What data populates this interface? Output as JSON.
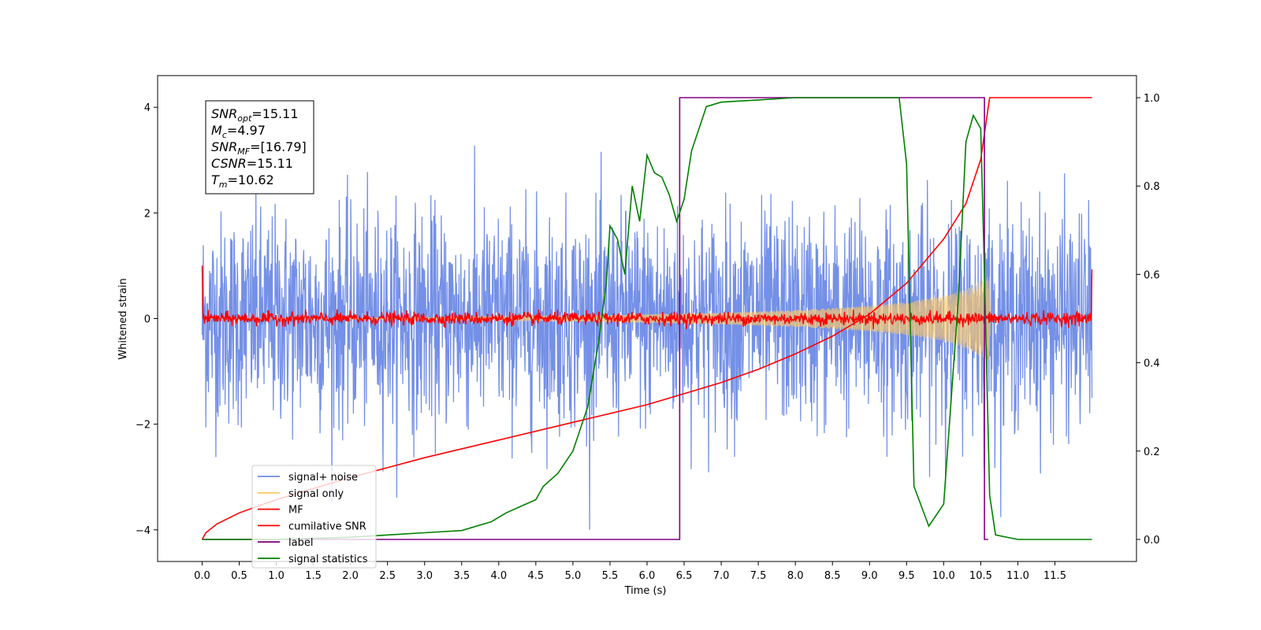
{
  "chart_data": {
    "type": "line",
    "xlabel": "Time (s)",
    "ylabel": "Whitened strain",
    "xlim": [
      -0.6,
      12.6
    ],
    "ylim": [
      -4.6,
      4.6
    ],
    "y2lim": [
      -0.05,
      1.05
    ],
    "x_ticks": [
      0.0,
      0.5,
      1.0,
      1.5,
      2.0,
      2.5,
      3.0,
      3.5,
      4.0,
      4.5,
      5.0,
      5.5,
      6.0,
      6.5,
      7.0,
      7.5,
      8.0,
      8.5,
      9.0,
      9.5,
      10.0,
      10.5,
      11.0,
      11.5
    ],
    "x_tick_labels": [
      "0.0",
      "0.5",
      "1.0",
      "1.5",
      "2.0",
      "2.5",
      "3.0",
      "3.5",
      "4.0",
      "4.5",
      "5.0",
      "5.5",
      "6.0",
      "6.5",
      "7.0",
      "7.5",
      "8.0",
      "8.5",
      "9.0",
      "9.5",
      "10.0",
      "10.5",
      "11.0",
      "11.5"
    ],
    "y_ticks": [
      -4,
      -2,
      0,
      2,
      4
    ],
    "y_tick_labels": [
      "−4",
      "−2",
      "0",
      "2",
      "4"
    ],
    "y2_ticks": [
      0.0,
      0.2,
      0.4,
      0.6,
      0.8,
      1.0
    ],
    "y2_tick_labels": [
      "0.0",
      "0.2",
      "0.4",
      "0.6",
      "0.8",
      "1.0"
    ],
    "legend_position": "lower-left",
    "legend": [
      {
        "label": "signal+ noise",
        "color": "#6d8ae6"
      },
      {
        "label": "signal only",
        "color": "#ffc966"
      },
      {
        "label": "MF",
        "color": "#ff0000"
      },
      {
        "label": "cumilative SNR",
        "color": "#ff0000"
      },
      {
        "label": "label",
        "color": "#800080"
      },
      {
        "label": "signal statistics",
        "color": "#008000"
      }
    ],
    "annotation": {
      "lines": [
        {
          "sym": "SNR",
          "sub": "opt",
          "value": "=15.11"
        },
        {
          "sym": "M",
          "sub": "c",
          "value": "=4.97"
        },
        {
          "sym": "SNR",
          "sub": "MF",
          "value": "=[16.79]"
        },
        {
          "sym": "CSNR",
          "sub": "",
          "value": "=15.11"
        },
        {
          "sym": "T",
          "sub": "m",
          "value": "=10.62"
        }
      ]
    },
    "series": [
      {
        "name": "signal+ noise",
        "axis": "left",
        "color": "#6d8ae6",
        "x_range": [
          0.0,
          12.0
        ],
        "spread": 1.0,
        "max_abs": 4.0
      },
      {
        "name": "signal only",
        "axis": "left",
        "color": "#ffc966",
        "envelope_x": [
          0.0,
          3.0,
          5.0,
          6.0,
          7.0,
          8.0,
          9.0,
          9.5,
          10.0,
          10.3,
          10.5,
          10.62,
          10.63
        ],
        "envelope_y": [
          0.0,
          0.02,
          0.05,
          0.08,
          0.11,
          0.16,
          0.24,
          0.31,
          0.43,
          0.56,
          0.72,
          0.8,
          0.0
        ]
      },
      {
        "name": "MF",
        "axis": "left",
        "color": "#ff0000",
        "x_range": [
          0.0,
          12.0
        ],
        "spread": 0.06,
        "start_value": 1.0,
        "end_value": 0.93
      },
      {
        "name": "cumilative SNR",
        "axis": "right",
        "color": "#ff0000",
        "x": [
          0.0,
          0.05,
          0.2,
          0.5,
          1.0,
          1.5,
          2.0,
          3.0,
          4.0,
          5.0,
          6.0,
          6.5,
          7.0,
          7.5,
          8.0,
          8.5,
          9.0,
          9.5,
          10.0,
          10.3,
          10.5,
          10.62,
          12.0
        ],
        "y": [
          0.0,
          0.015,
          0.035,
          0.06,
          0.09,
          0.115,
          0.14,
          0.185,
          0.225,
          0.265,
          0.305,
          0.33,
          0.355,
          0.385,
          0.42,
          0.46,
          0.51,
          0.58,
          0.68,
          0.76,
          0.86,
          1.0,
          1.0
        ]
      },
      {
        "name": "label",
        "axis": "right",
        "color": "#800080",
        "x": [
          0.0,
          6.44,
          6.44,
          10.55,
          10.55,
          10.6
        ],
        "y": [
          0.0,
          0.0,
          1.0,
          1.0,
          0.0,
          0.0
        ]
      },
      {
        "name": "signal statistics",
        "axis": "right",
        "color": "#008000",
        "x": [
          0.0,
          1.0,
          2.0,
          2.5,
          3.0,
          3.5,
          3.9,
          4.1,
          4.3,
          4.5,
          4.6,
          4.8,
          5.0,
          5.2,
          5.35,
          5.45,
          5.5,
          5.6,
          5.7,
          5.8,
          5.9,
          6.0,
          6.1,
          6.2,
          6.3,
          6.4,
          6.5,
          6.6,
          6.8,
          7.0,
          7.5,
          8.0,
          9.0,
          9.4,
          9.5,
          9.6,
          9.8,
          10.0,
          10.2,
          10.3,
          10.4,
          10.5,
          10.55,
          10.62,
          10.7,
          11.0,
          12.0
        ],
        "y": [
          0.0,
          0.0,
          0.005,
          0.01,
          0.015,
          0.02,
          0.04,
          0.06,
          0.075,
          0.09,
          0.12,
          0.15,
          0.2,
          0.3,
          0.45,
          0.58,
          0.71,
          0.68,
          0.6,
          0.8,
          0.72,
          0.87,
          0.83,
          0.82,
          0.78,
          0.72,
          0.77,
          0.88,
          0.98,
          0.99,
          0.995,
          1.0,
          1.0,
          1.0,
          0.85,
          0.12,
          0.03,
          0.08,
          0.55,
          0.9,
          0.96,
          0.93,
          0.6,
          0.1,
          0.01,
          0.0,
          0.0
        ]
      }
    ]
  }
}
